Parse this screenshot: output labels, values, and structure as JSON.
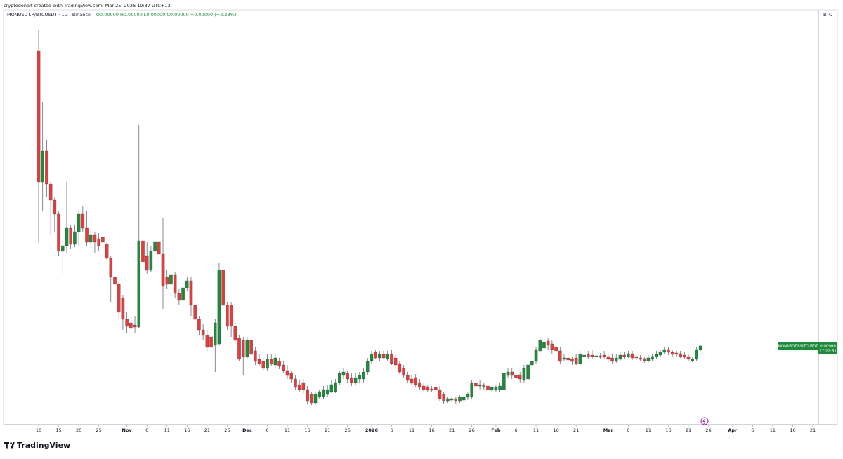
{
  "header": {
    "author_line": "cryptodonalt created with TradingView.com, Mar 25, 2026 19:37 UTC+13",
    "symbol": "MONUSDT.P/BTCUSDT · 1D · Binance",
    "legend_values": "O0.00000  H0.00000  L0.00000  C0.00000  +0.00000 (+2.23%)"
  },
  "price_label": {
    "symbol": "MONUSDT.P/BTCUSDT",
    "price": "0.00000",
    "countdown": "17:22:51"
  },
  "footer": {
    "brand": "TradingView"
  },
  "chart_data": {
    "type": "candlestick",
    "y_axis_label": "BTC",
    "up_color": "#1e8a3c",
    "down_color": "#e53b3b",
    "xlim": [
      -8.76,
      194.4
    ],
    "ylim": [
      -5e-09,
      5.86e-07
    ],
    "xticks": [
      {
        "value": 0,
        "label": "10"
      },
      {
        "value": 5,
        "label": "15"
      },
      {
        "value": 10,
        "label": "20"
      },
      {
        "value": 15,
        "label": "25"
      },
      {
        "value": 22,
        "label": "Nov"
      },
      {
        "value": 27,
        "label": "6"
      },
      {
        "value": 32,
        "label": "11"
      },
      {
        "value": 37,
        "label": "16"
      },
      {
        "value": 42,
        "label": "21"
      },
      {
        "value": 47,
        "label": "26"
      },
      {
        "value": 52,
        "label": "Dec"
      },
      {
        "value": 57,
        "label": "6"
      },
      {
        "value": 62,
        "label": "11"
      },
      {
        "value": 67,
        "label": "16"
      },
      {
        "value": 72,
        "label": "21"
      },
      {
        "value": 77,
        "label": "26"
      },
      {
        "value": 83,
        "label": "2026"
      },
      {
        "value": 88,
        "label": "6"
      },
      {
        "value": 93,
        "label": "11"
      },
      {
        "value": 98,
        "label": "16"
      },
      {
        "value": 103,
        "label": "21"
      },
      {
        "value": 108,
        "label": "26"
      },
      {
        "value": 114,
        "label": "Feb"
      },
      {
        "value": 119,
        "label": "6"
      },
      {
        "value": 124,
        "label": "11"
      },
      {
        "value": 129,
        "label": "16"
      },
      {
        "value": 134,
        "label": "21"
      },
      {
        "value": 142,
        "label": "Mar"
      },
      {
        "value": 147,
        "label": "6"
      },
      {
        "value": 152,
        "label": "11"
      },
      {
        "value": 157,
        "label": "16"
      },
      {
        "value": 162,
        "label": "21"
      },
      {
        "value": 167,
        "label": "26"
      },
      {
        "value": 173,
        "label": "Apr"
      },
      {
        "value": 178,
        "label": "6"
      },
      {
        "value": 183,
        "label": "11"
      },
      {
        "value": 188,
        "label": "16"
      },
      {
        "value": 193,
        "label": "21"
      }
    ],
    "x": [
      0,
      1,
      2,
      3,
      4,
      5,
      6,
      7,
      8,
      9,
      10,
      11,
      12,
      13,
      14,
      15,
      16,
      17,
      18,
      19,
      20,
      21,
      22,
      23,
      24,
      25,
      26,
      27,
      28,
      29,
      30,
      31,
      32,
      33,
      34,
      35,
      36,
      37,
      38,
      39,
      40,
      41,
      42,
      43,
      44,
      45,
      46,
      47,
      48,
      49,
      50,
      51,
      52,
      53,
      54,
      55,
      56,
      57,
      58,
      59,
      60,
      61,
      62,
      63,
      64,
      65,
      66,
      67,
      68,
      69,
      70,
      71,
      72,
      73,
      74,
      75,
      76,
      77,
      78,
      79,
      80,
      81,
      82,
      83,
      84,
      85,
      86,
      87,
      88,
      89,
      90,
      91,
      92,
      93,
      94,
      95,
      96,
      97,
      98,
      99,
      100,
      101,
      102,
      103,
      104,
      105,
      106,
      107,
      108,
      109,
      110,
      111,
      112,
      113,
      114,
      115,
      116,
      117,
      118,
      119,
      120,
      121,
      122,
      123,
      124,
      125,
      126,
      127,
      128,
      129,
      130,
      131,
      132,
      133,
      134,
      135,
      136,
      137,
      138,
      139,
      140,
      141,
      142,
      143,
      144,
      145,
      146,
      147,
      148,
      149,
      150,
      151,
      152,
      153,
      154,
      155,
      156,
      157,
      158,
      159,
      160,
      161,
      162,
      163,
      164,
      165
    ],
    "ohlc": [
      [
        5.28e-07,
        5.57e-07,
        2.54e-07,
        3.4e-07
      ],
      [
        3.4e-07,
        4.55e-07,
        3e-07,
        3.85e-07
      ],
      [
        3.85e-07,
        4e-07,
        3.2e-07,
        3.38e-07
      ],
      [
        3.38e-07,
        3.42e-07,
        2.65e-07,
        3.15e-07
      ],
      [
        3.15e-07,
        3.2e-07,
        2.7e-07,
        2.95e-07
      ],
      [
        2.95e-07,
        3e-07,
        2.35e-07,
        2.42e-07
      ],
      [
        2.42e-07,
        2.6e-07,
        2.1e-07,
        2.5e-07
      ],
      [
        2.5e-07,
        3.4e-07,
        2.4e-07,
        2.75e-07
      ],
      [
        2.75e-07,
        2.8e-07,
        2.45e-07,
        2.52e-07
      ],
      [
        2.52e-07,
        2.8e-07,
        2.48e-07,
        2.7e-07
      ],
      [
        2.7e-07,
        3e-07,
        2.5e-07,
        2.95e-07
      ],
      [
        2.95e-07,
        3.07e-07,
        2.7e-07,
        2.75e-07
      ],
      [
        2.75e-07,
        3e-07,
        2.5e-07,
        2.55e-07
      ],
      [
        2.55e-07,
        2.75e-07,
        2.5e-07,
        2.65e-07
      ],
      [
        2.65e-07,
        2.7e-07,
        2.4e-07,
        2.55e-07
      ],
      [
        2.6e-07,
        2.68e-07,
        2.42e-07,
        2.5e-07
      ],
      [
        2.62e-07,
        2.7e-07,
        2.5e-07,
        2.55e-07
      ],
      [
        2.52e-07,
        2.55e-07,
        2.3e-07,
        2.32e-07
      ],
      [
        2.32e-07,
        2.35e-07,
        1.7e-07,
        2.05e-07
      ],
      [
        2.05e-07,
        2.1e-07,
        1.85e-07,
        1.95e-07
      ],
      [
        1.95e-07,
        2e-07,
        1.45e-07,
        1.55e-07
      ],
      [
        1.75e-07,
        1.8e-07,
        1.3e-07,
        1.45e-07
      ],
      [
        1.45e-07,
        1.55e-07,
        1.25e-07,
        1.35e-07
      ],
      [
        1.4e-07,
        1.5e-07,
        1.22e-07,
        1.32e-07
      ],
      [
        1.37e-07,
        1.5e-07,
        1.25e-07,
        1.34e-07
      ],
      [
        1.34e-07,
        4.22e-07,
        1.32e-07,
        2.57e-07
      ],
      [
        2.57e-07,
        2.65e-07,
        2.2e-07,
        2.27e-07
      ],
      [
        2.35e-07,
        2.55e-07,
        2.1e-07,
        2.15e-07
      ],
      [
        2.15e-07,
        2.5e-07,
        2.12e-07,
        2.42e-07
      ],
      [
        2.42e-07,
        2.7e-07,
        2.35e-07,
        2.55e-07
      ],
      [
        2.55e-07,
        2.6e-07,
        2.33e-07,
        2.38e-07
      ],
      [
        2.38e-07,
        2.9e-07,
        1.6e-07,
        1.92e-07
      ],
      [
        2.05e-07,
        2.15e-07,
        1.88e-07,
        1.95e-07
      ],
      [
        1.95e-07,
        2.15e-07,
        1.9e-07,
        2.08e-07
      ],
      [
        2.08e-07,
        2.12e-07,
        1.75e-07,
        1.82e-07
      ],
      [
        1.82e-07,
        1.88e-07,
        1.65e-07,
        1.72e-07
      ],
      [
        1.72e-07,
        1.95e-07,
        1.68e-07,
        1.9e-07
      ],
      [
        1.9e-07,
        2.05e-07,
        1.85e-07,
        2e-07
      ],
      [
        2e-07,
        2.05e-07,
        1.5e-07,
        1.65e-07
      ],
      [
        1.65e-07,
        1.8e-07,
        1.4e-07,
        1.45e-07
      ],
      [
        1.45e-07,
        1.5e-07,
        1.22e-07,
        1.3e-07
      ],
      [
        1.3e-07,
        1.38e-07,
        1.15e-07,
        1.22e-07
      ],
      [
        1.22e-07,
        1.3e-07,
        1e-07,
        1.05e-07
      ],
      [
        1.2e-07,
        1.25e-07,
        9.5e-08,
        1.05e-07
      ],
      [
        1.08e-07,
        1.45e-07,
        7e-08,
        1.4e-07
      ],
      [
        1.1e-07,
        2.25e-07,
        1.08e-07,
        2.15e-07
      ],
      [
        2.15e-07,
        2.22e-07,
        1.6e-07,
        1.65e-07
      ],
      [
        1.65e-07,
        1.7e-07,
        1.3e-07,
        1.35e-07
      ],
      [
        1.65e-07,
        1.7e-07,
        1.2e-07,
        1.35e-07
      ],
      [
        1.35e-07,
        1.4e-07,
        1.1e-07,
        1.15e-07
      ],
      [
        1.18e-07,
        1.22e-07,
        8.5e-08,
        8.8e-08
      ],
      [
        1.15e-07,
        1.2e-07,
        6.5e-08,
        9.2e-08
      ],
      [
        9.2e-08,
        1.2e-07,
        8.8e-08,
        1.15e-07
      ],
      [
        1.15e-07,
        1.2e-07,
        9e-08,
        9.5e-08
      ],
      [
        1e-07,
        1.05e-07,
        8e-08,
        8.5e-08
      ],
      [
        8.8e-08,
        9.5e-08,
        7.8e-08,
        8.2e-08
      ],
      [
        8.5e-08,
        9e-08,
        7.2e-08,
        7.5e-08
      ],
      [
        7.5e-08,
        9.5e-08,
        7.2e-08,
        8.8e-08
      ],
      [
        8.8e-08,
        9.5e-08,
        7.8e-08,
        8.2e-08
      ],
      [
        8e-08,
        9.5e-08,
        7.5e-08,
        9e-08
      ],
      [
        8.5e-08,
        9e-08,
        7.4e-08,
        7.8e-08
      ],
      [
        8e-08,
        8.5e-08,
        6.8e-08,
        7.2e-08
      ],
      [
        7.2e-08,
        8e-08,
        6e-08,
        6.5e-08
      ],
      [
        6.8e-08,
        7.2e-08,
        5.5e-08,
        6e-08
      ],
      [
        6e-08,
        6.5e-08,
        4.4e-08,
        4.8e-08
      ],
      [
        5.2e-08,
        5.8e-08,
        4.2e-08,
        4.5e-08
      ],
      [
        5.5e-08,
        6e-08,
        4e-08,
        4.5e-08
      ],
      [
        4.5e-08,
        5e-08,
        2.5e-08,
        2.8e-08
      ],
      [
        3.8e-08,
        4.2e-08,
        2.3e-08,
        2.6e-08
      ],
      [
        2.6e-08,
        4.2e-08,
        2.3e-08,
        3.8e-08
      ],
      [
        3.5e-08,
        4.5e-08,
        3.2e-08,
        4.2e-08
      ],
      [
        3.5e-08,
        5e-08,
        3.2e-08,
        4.5e-08
      ],
      [
        3.8e-08,
        5.2e-08,
        3.5e-08,
        4.5e-08
      ],
      [
        4.2e-08,
        5.8e-08,
        4e-08,
        5.2e-08
      ],
      [
        4.2e-08,
        6e-08,
        4e-08,
        5.5e-08
      ],
      [
        5.5e-08,
        7.2e-08,
        5.2e-08,
        6.8e-08
      ],
      [
        6.5e-08,
        7.5e-08,
        6e-08,
        7e-08
      ],
      [
        6.8e-08,
        7.2e-08,
        5.5e-08,
        6e-08
      ],
      [
        6.2e-08,
        6.8e-08,
        5e-08,
        5.5e-08
      ],
      [
        5.5e-08,
        6.8e-08,
        5.2e-08,
        6.2e-08
      ],
      [
        6e-08,
        7e-08,
        5.5e-08,
        6.5e-08
      ],
      [
        6e-08,
        7.5e-08,
        5.5e-08,
        7e-08
      ],
      [
        7e-08,
        9e-08,
        6.5e-08,
        8.5e-08
      ],
      [
        8.5e-08,
        1e-07,
        8.2e-08,
        9.5e-08
      ],
      [
        9.8e-08,
        1.02e-07,
        8.8e-08,
        9e-08
      ],
      [
        9e-08,
        1e-07,
        8.5e-08,
        9.5e-08
      ],
      [
        9.5e-08,
        1e-07,
        8.8e-08,
        9e-08
      ],
      [
        8.8e-08,
        1e-07,
        8.5e-08,
        9.5e-08
      ],
      [
        9.5e-08,
        1.02e-07,
        8e-08,
        8.2e-08
      ],
      [
        9e-08,
        9.5e-08,
        7.6e-08,
        8e-08
      ],
      [
        8.2e-08,
        8.5e-08,
        6.7e-08,
        7e-08
      ],
      [
        7.5e-08,
        8e-08,
        6.2e-08,
        6.5e-08
      ],
      [
        6.5e-08,
        7e-08,
        5.5e-08,
        5.8e-08
      ],
      [
        6e-08,
        6.5e-08,
        5.1e-08,
        5.4e-08
      ],
      [
        6.2e-08,
        6.7e-08,
        4.8e-08,
        5.2e-08
      ],
      [
        5.5e-08,
        6e-08,
        4.4e-08,
        4.8e-08
      ],
      [
        5e-08,
        5.5e-08,
        4.2e-08,
        4.5e-08
      ],
      [
        4.8e-08,
        5.2e-08,
        4.1e-08,
        4.4e-08
      ],
      [
        4.6e-08,
        5e-08,
        4.2e-08,
        4.4e-08
      ],
      [
        4.8e-08,
        5.2e-08,
        4.2e-08,
        4.5e-08
      ],
      [
        4.5e-08,
        5e-08,
        2.8e-08,
        3.2e-08
      ],
      [
        3.8e-08,
        4.2e-08,
        2.5e-08,
        2.8e-08
      ],
      [
        2.8e-08,
        3.5e-08,
        2.6e-08,
        3.2e-08
      ],
      [
        3e-08,
        3.5e-08,
        2.7e-08,
        3.2e-08
      ],
      [
        3.2e-08,
        3.5e-08,
        2.5e-08,
        2.8e-08
      ],
      [
        2.8e-08,
        3.7e-08,
        2.6e-08,
        3.4e-08
      ],
      [
        3e-08,
        3.7e-08,
        2.8e-08,
        3.4e-08
      ],
      [
        3.4e-08,
        4.2e-08,
        3e-08,
        3.8e-08
      ],
      [
        3.5e-08,
        5.8e-08,
        3.2e-08,
        5.4e-08
      ],
      [
        5.4e-08,
        5.8e-08,
        4.5e-08,
        5e-08
      ],
      [
        5e-08,
        5.8e-08,
        4.4e-08,
        5.2e-08
      ],
      [
        5.2e-08,
        5.5e-08,
        4.4e-08,
        4.8e-08
      ],
      [
        5e-08,
        5.5e-08,
        3.8e-08,
        4.5e-08
      ],
      [
        4.4e-08,
        5.2e-08,
        4.2e-08,
        4.8e-08
      ],
      [
        4.5e-08,
        5.2e-08,
        4.2e-08,
        4.8e-08
      ],
      [
        4.5e-08,
        5.5e-08,
        4.2e-08,
        5e-08
      ],
      [
        4.5e-08,
        7e-08,
        4.2e-08,
        6.8e-08
      ],
      [
        6.5e-08,
        7.5e-08,
        6.2e-08,
        7e-08
      ],
      [
        7e-08,
        7.5e-08,
        6e-08,
        6.5e-08
      ],
      [
        6.5e-08,
        7e-08,
        5.8e-08,
        6.2e-08
      ],
      [
        6.6e-08,
        7e-08,
        5.5e-08,
        6e-08
      ],
      [
        5.8e-08,
        8e-08,
        5.5e-08,
        7.5e-08
      ],
      [
        6e-08,
        8.2e-08,
        5.2e-08,
        8e-08
      ],
      [
        8e-08,
        9e-08,
        7.5e-08,
        8.5e-08
      ],
      [
        8.5e-08,
        1.05e-07,
        8.2e-08,
        1.02e-07
      ],
      [
        1e-07,
        1.2e-07,
        9.5e-08,
        1.15e-07
      ],
      [
        1.04e-07,
        1.18e-07,
        1e-07,
        1.12e-07
      ],
      [
        1.14e-07,
        1.18e-07,
        1.02e-07,
        1.08e-07
      ],
      [
        1.1e-07,
        1.15e-07,
        9.5e-08,
        1.02e-07
      ],
      [
        1.05e-07,
        1.1e-07,
        9e-08,
        1e-07
      ],
      [
        1e-07,
        1.05e-07,
        8.2e-08,
        8.5e-08
      ],
      [
        8.8e-08,
        9.5e-08,
        8.5e-08,
        9e-08
      ],
      [
        9e-08,
        9.5e-08,
        8.2e-08,
        8.7e-08
      ],
      [
        8.8e-08,
        9.2e-08,
        8e-08,
        8.5e-08
      ],
      [
        9e-08,
        9.5e-08,
        8e-08,
        8.2e-08
      ],
      [
        8.2e-08,
        1e-07,
        8e-08,
        9.5e-08
      ],
      [
        9.2e-08,
        9.8e-08,
        8.8e-08,
        9.4e-08
      ],
      [
        9.5e-08,
        1e-07,
        8.8e-08,
        9.2e-08
      ],
      [
        9.4e-08,
        1.02e-07,
        8.8e-08,
        9.2e-08
      ],
      [
        9.2e-08,
        9.5e-08,
        8.9e-08,
        9.3e-08
      ],
      [
        9.3e-08,
        9.7e-08,
        8.8e-08,
        9.1e-08
      ],
      [
        9.4e-08,
        1e-07,
        8.8e-08,
        9.2e-08
      ],
      [
        9.2e-08,
        9.6e-08,
        8.4e-08,
        8.8e-08
      ],
      [
        9e-08,
        9.5e-08,
        8.2e-08,
        8.5e-08
      ],
      [
        8.6e-08,
        9.5e-08,
        8.3e-08,
        9e-08
      ],
      [
        8.8e-08,
        9.8e-08,
        8.5e-08,
        9.4e-08
      ],
      [
        9.4e-08,
        9.8e-08,
        8.8e-08,
        9.2e-08
      ],
      [
        9.2e-08,
        1e-07,
        9e-08,
        9.6e-08
      ],
      [
        9.6e-08,
        1e-07,
        8.7e-08,
        9e-08
      ],
      [
        9.2e-08,
        9.5e-08,
        8.8e-08,
        9e-08
      ],
      [
        9e-08,
        9.4e-08,
        8.5e-08,
        8.8e-08
      ],
      [
        8.9e-08,
        9.2e-08,
        8.3e-08,
        8.6e-08
      ],
      [
        8.6e-08,
        9.4e-08,
        8.3e-08,
        9e-08
      ],
      [
        8.8e-08,
        9.6e-08,
        8.5e-08,
        9.2e-08
      ],
      [
        9.2e-08,
        1e-07,
        8.9e-08,
        9.5e-08
      ],
      [
        9.4e-08,
        1.02e-07,
        9.1e-08,
        9.8e-08
      ],
      [
        9.8e-08,
        1.05e-07,
        9.5e-08,
        1.02e-07
      ],
      [
        1.02e-07,
        1.05e-07,
        9.4e-08,
        9.8e-08
      ],
      [
        9.8e-08,
        1.02e-07,
        9.2e-08,
        9.5e-08
      ],
      [
        9.7e-08,
        1e-07,
        9.2e-08,
        9.5e-08
      ],
      [
        9.6e-08,
        1e-07,
        9e-08,
        9.2e-08
      ],
      [
        9.4e-08,
        9.8e-08,
        8.8e-08,
        9.1e-08
      ],
      [
        9.2e-08,
        9.6e-08,
        8.5e-08,
        8.8e-08
      ],
      [
        8.6e-08,
        9.2e-08,
        8.4e-08,
        8.8e-08
      ],
      [
        8.8e-08,
        1.05e-07,
        8.5e-08,
        1.02e-07
      ],
      [
        1.02e-07,
        1.08e-07,
        1e-07,
        1.07e-07
      ]
    ]
  }
}
